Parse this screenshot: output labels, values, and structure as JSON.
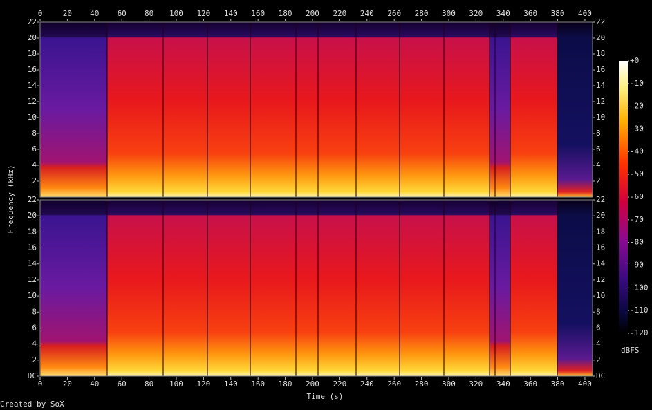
{
  "chart_data": {
    "type": "spectrogram",
    "xlabel": "Time (s)",
    "ylabel": "Frequency (kHz)",
    "xlim": [
      0,
      405.6
    ],
    "xticks": [
      0,
      20,
      40,
      60,
      80,
      100,
      120,
      140,
      160,
      180,
      200,
      220,
      240,
      260,
      280,
      300,
      320,
      340,
      360,
      380,
      400
    ],
    "channels": [
      {
        "ylim": [
          0,
          22
        ],
        "yticks": [
          2,
          4,
          6,
          8,
          10,
          12,
          14,
          16,
          18,
          20,
          22
        ]
      },
      {
        "ylim": [
          0,
          22
        ],
        "yticks": [
          {
            "value": 0,
            "label": "DC"
          },
          2,
          4,
          6,
          8,
          10,
          12,
          14,
          16,
          18,
          20,
          22
        ]
      }
    ],
    "colorbar": {
      "lim": [
        -120,
        0
      ],
      "ticks": [
        {
          "value": 0,
          "label": "+0"
        },
        -10,
        -20,
        -30,
        -40,
        -50,
        -60,
        -70,
        -80,
        -90,
        -100,
        -110,
        -120
      ],
      "label": "dBFS"
    },
    "credit": "Created by SoX"
  }
}
